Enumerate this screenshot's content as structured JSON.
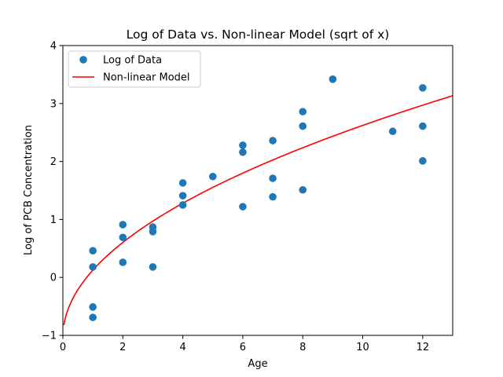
{
  "chart_data": {
    "type": "scatter",
    "title": "Log of Data vs. Non-linear Model (sqrt of x)",
    "xlabel": "Age",
    "ylabel": "Log of PCB Concentration",
    "xlim": [
      0,
      13
    ],
    "ylim": [
      -1,
      4
    ],
    "xticks": [
      0,
      2,
      4,
      6,
      8,
      10,
      12
    ],
    "yticks": [
      -1,
      0,
      1,
      2,
      3,
      4
    ],
    "grid": false,
    "legend_position": "top-left",
    "series": [
      {
        "name": "Log of Data",
        "kind": "scatter",
        "color": "#1f77b4",
        "x": [
          1,
          1,
          1,
          1,
          2,
          2,
          2,
          3,
          3,
          3,
          4,
          4,
          4,
          5,
          6,
          6,
          6,
          7,
          7,
          7,
          8,
          8,
          8,
          9,
          11,
          12,
          12,
          12
        ],
        "y": [
          0.46,
          0.18,
          -0.51,
          -0.69,
          0.91,
          0.69,
          0.26,
          0.87,
          0.79,
          0.18,
          1.63,
          1.41,
          1.25,
          1.74,
          2.28,
          2.16,
          1.22,
          2.36,
          1.71,
          1.39,
          2.86,
          2.61,
          1.51,
          3.42,
          2.52,
          3.27,
          2.61,
          2.01
        ]
      },
      {
        "name": "Non-linear Model",
        "kind": "line",
        "color": "#ff0000",
        "model": {
          "form": "a + b*sqrt(x)",
          "a": -1.03,
          "b": 1.155
        }
      }
    ]
  }
}
